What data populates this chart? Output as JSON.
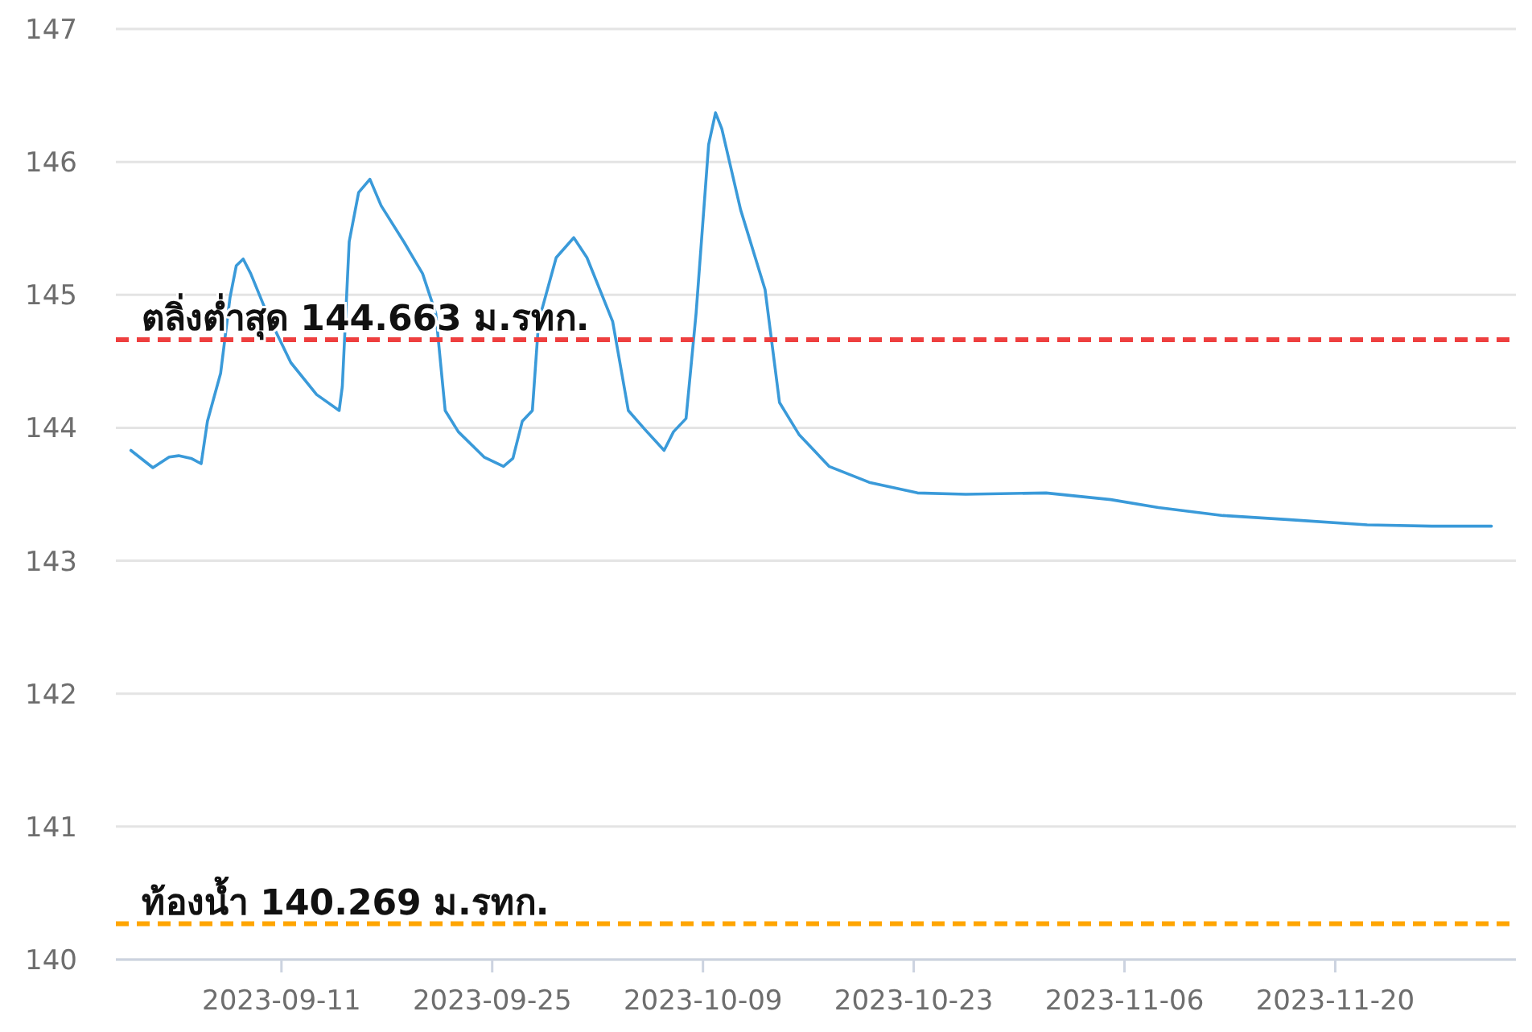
{
  "chart_data": {
    "type": "line",
    "xlim": [
      "2023-08-31",
      "2023-12-02"
    ],
    "xticks": [
      "2023-09-11",
      "2023-09-25",
      "2023-10-09",
      "2023-10-23",
      "2023-11-06",
      "2023-11-20"
    ],
    "ylim": [
      140,
      147
    ],
    "yticks": [
      140,
      141,
      142,
      143,
      144,
      145,
      146,
      147
    ],
    "grid": "y",
    "marker": "none",
    "line_style": "solid",
    "series": [
      {
        "color": "#3a9ad9",
        "x": [
          "2023-09-01T00:00",
          "2023-09-02T11:00",
          "2023-09-03T13:00",
          "2023-09-04T04:00",
          "2023-09-05T00:00",
          "2023-09-05T16:00",
          "2023-09-06T02:00",
          "2023-09-06T23:00",
          "2023-09-07T14:00",
          "2023-09-08T00:00",
          "2023-09-08T11:00",
          "2023-09-08T23:00",
          "2023-09-10T01:00",
          "2023-09-11T15:00",
          "2023-09-13T08:00",
          "2023-09-14T20:00",
          "2023-09-15T01:00",
          "2023-09-15T12:00",
          "2023-09-16T03:00",
          "2023-09-16T21:00",
          "2023-09-17T15:00",
          "2023-09-19T03:00",
          "2023-09-20T09:00",
          "2023-09-21T06:00",
          "2023-09-21T21:00",
          "2023-09-22T18:00",
          "2023-09-24T11:00",
          "2023-09-25T18:00",
          "2023-09-26T09:00",
          "2023-09-27T00:00",
          "2023-09-27T16:00",
          "2023-09-28T02:00",
          "2023-09-29T06:00",
          "2023-09-30T10:00",
          "2023-10-01T07:00",
          "2023-10-03T00:00",
          "2023-10-04T01:00",
          "2023-10-05T03:00",
          "2023-10-06T10:00",
          "2023-10-07T01:00",
          "2023-10-07T21:00",
          "2023-10-08T13:00",
          "2023-10-09T09:00",
          "2023-10-09T20:00",
          "2023-10-10T06:00",
          "2023-10-11T12:00",
          "2023-10-13T03:00",
          "2023-10-14T02:00",
          "2023-10-15T09:00",
          "2023-10-17T09:00",
          "2023-10-20T01:00",
          "2023-10-23T06:00",
          "2023-10-26T11:00",
          "2023-10-31T19:00",
          "2023-11-05T02:00",
          "2023-11-08T06:00",
          "2023-11-12T13:00",
          "2023-11-16T19:00",
          "2023-11-22T03:00",
          "2023-11-26T10:00",
          "2023-11-30T09:00"
        ],
        "values": [
          143.83,
          143.7,
          143.78,
          143.79,
          143.77,
          143.73,
          144.05,
          144.41,
          144.98,
          145.22,
          145.27,
          145.16,
          144.86,
          144.49,
          144.25,
          144.13,
          144.31,
          145.4,
          145.77,
          145.87,
          145.67,
          145.4,
          145.16,
          144.86,
          144.13,
          143.97,
          143.78,
          143.71,
          143.77,
          144.05,
          144.13,
          144.8,
          145.28,
          145.43,
          145.28,
          144.8,
          144.13,
          143.99,
          143.83,
          143.97,
          144.07,
          144.86,
          146.13,
          146.37,
          146.25,
          145.64,
          145.04,
          144.19,
          143.95,
          143.71,
          143.59,
          143.51,
          143.5,
          143.51,
          143.46,
          143.4,
          143.34,
          143.31,
          143.27,
          143.26,
          143.26
        ]
      }
    ],
    "ref_lines": [
      {
        "axis": "y",
        "value": 144.663,
        "label": "ตลิ่งต่ำสุด 144.663 ม.รทก.",
        "color": "#ee3f3f",
        "line_style": "dashed"
      },
      {
        "axis": "y",
        "value": 140.269,
        "label": "ท้องน้ำ 140.269 ม.รทก.",
        "color": "#ffa500",
        "line_style": "dashed"
      }
    ]
  }
}
